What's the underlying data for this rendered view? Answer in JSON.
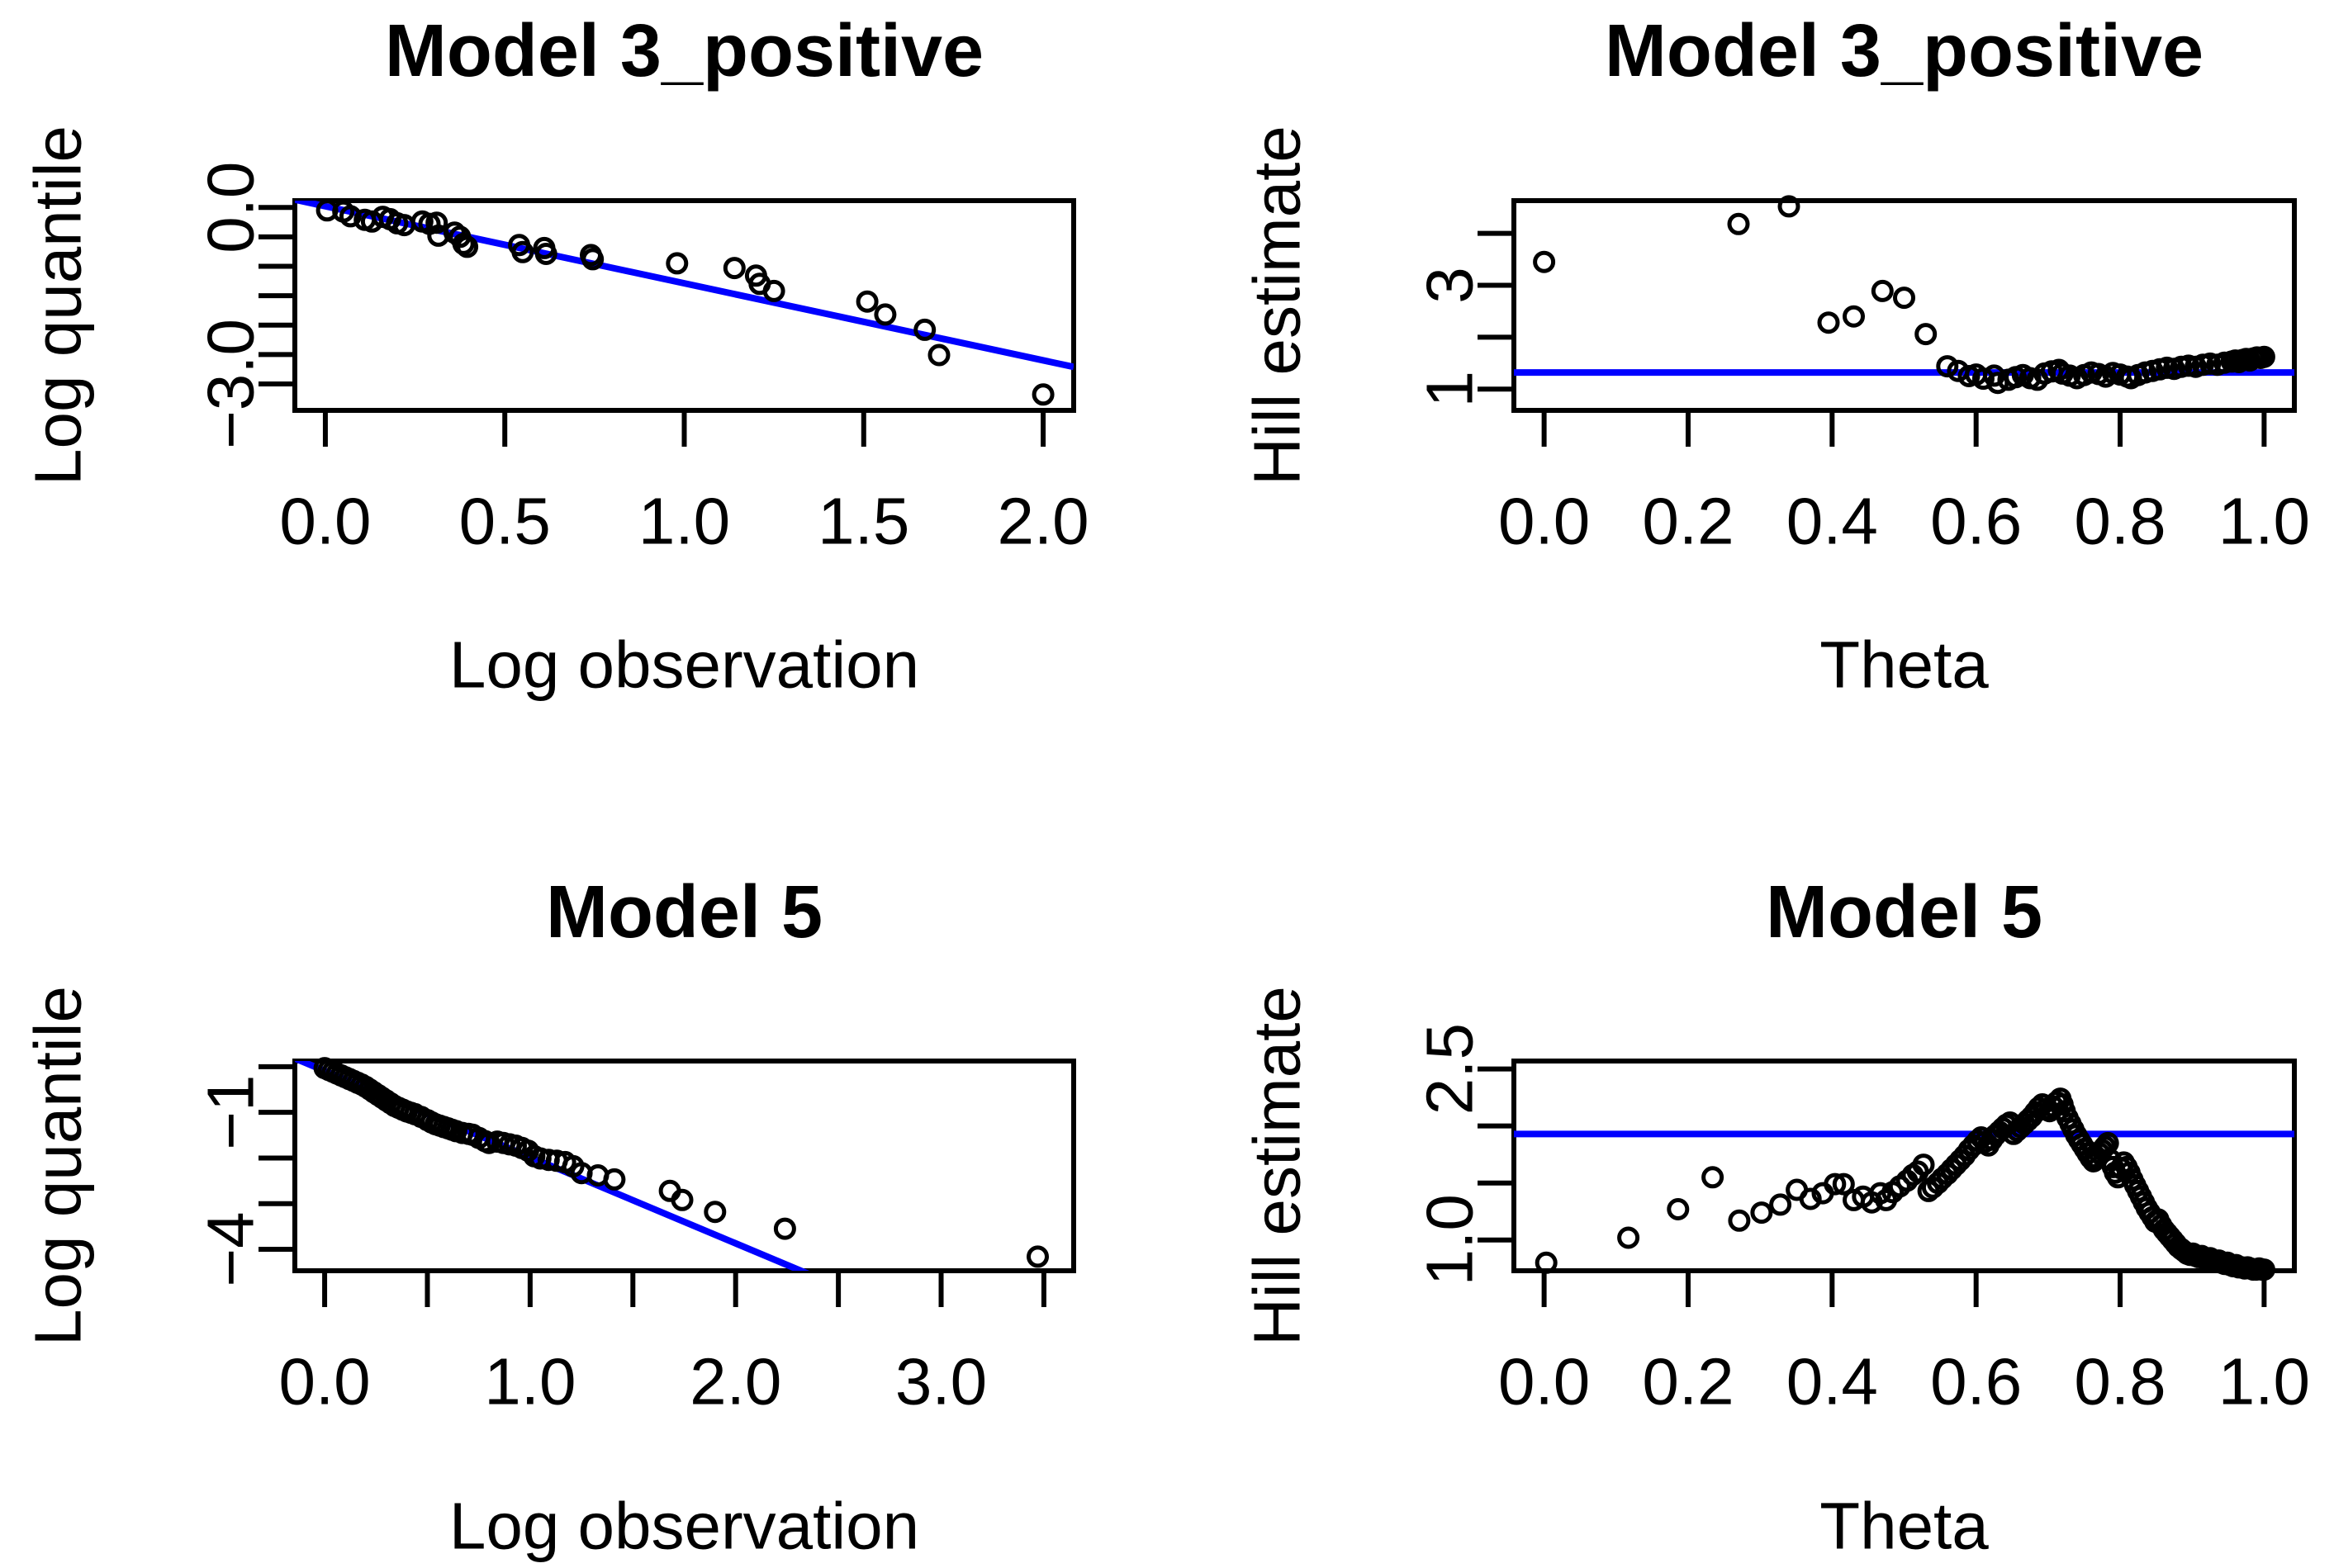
{
  "figure": {
    "background": "#ffffff",
    "foreground": "#000000",
    "accent_blue": "#0000ff",
    "layout_note": "2x2 grid of R base-graphics plots"
  },
  "chart_data": [
    {
      "id": "qq-model3-positive",
      "type": "scatter",
      "title": "Model 3_positive",
      "xlabel": "Log observation",
      "ylabel": "Log quantile",
      "xlim": [
        -0.085,
        2.085
      ],
      "ylim": [
        -3.45,
        0.115
      ],
      "grid": "off",
      "xticks": [
        [
          0,
          "0.0"
        ],
        [
          0.5,
          "0.5"
        ],
        [
          1,
          "1.0"
        ],
        [
          1.5,
          "1.5"
        ],
        [
          2,
          "2.0"
        ]
      ],
      "yticks": [
        [
          0,
          "0.0"
        ],
        [
          -0.5,
          ""
        ],
        [
          -1,
          ""
        ],
        [
          -1.5,
          ""
        ],
        [
          -2,
          ""
        ],
        [
          -2.5,
          ""
        ],
        [
          -3,
          "−3.0"
        ]
      ],
      "refline": {
        "kind": "ab",
        "slope": -1.31,
        "intercept": 0.02
      },
      "points": [
        [
          0.005,
          -0.05
        ],
        [
          0.05,
          -0.07
        ],
        [
          0.07,
          -0.15
        ],
        [
          0.11,
          -0.21
        ],
        [
          0.13,
          -0.24
        ],
        [
          0.16,
          -0.16
        ],
        [
          0.18,
          -0.2
        ],
        [
          0.2,
          -0.27
        ],
        [
          0.22,
          -0.3
        ],
        [
          0.27,
          -0.24
        ],
        [
          0.29,
          -0.28
        ],
        [
          0.31,
          -0.26
        ],
        [
          0.315,
          -0.48
        ],
        [
          0.36,
          -0.43
        ],
        [
          0.375,
          -0.5
        ],
        [
          0.385,
          -0.62
        ],
        [
          0.395,
          -0.67
        ],
        [
          0.54,
          -0.64
        ],
        [
          0.55,
          -0.76
        ],
        [
          0.61,
          -0.69
        ],
        [
          0.615,
          -0.79
        ],
        [
          0.74,
          -0.81
        ],
        [
          0.745,
          -0.88
        ],
        [
          0.98,
          -0.95
        ],
        [
          1.14,
          -1.03
        ],
        [
          1.2,
          -1.16
        ],
        [
          1.21,
          -1.3
        ],
        [
          1.25,
          -1.42
        ],
        [
          1.51,
          -1.6
        ],
        [
          1.56,
          -1.82
        ],
        [
          1.67,
          -2.08
        ],
        [
          1.71,
          -2.51
        ],
        [
          2.0,
          -3.18
        ]
      ]
    },
    {
      "id": "hill-model3-positive",
      "type": "scatter",
      "title": "Model 3_positive",
      "xlabel": "Theta",
      "ylabel": "Hill estimate",
      "xlim": [
        -0.042,
        1.042
      ],
      "ylim": [
        0.59,
        4.63
      ],
      "grid": "off",
      "xticks": [
        [
          0,
          "0.0"
        ],
        [
          0.2,
          "0.2"
        ],
        [
          0.4,
          "0.4"
        ],
        [
          0.6,
          "0.6"
        ],
        [
          0.8,
          "0.8"
        ],
        [
          1,
          "1.0"
        ]
      ],
      "yticks": [
        [
          1,
          "1"
        ],
        [
          2,
          ""
        ],
        [
          3,
          "3"
        ],
        [
          4,
          ""
        ]
      ],
      "refline": {
        "kind": "h",
        "y": 1.32
      },
      "points": [
        [
          0.0,
          3.45
        ],
        [
          0.27,
          4.18
        ],
        [
          0.34,
          4.52
        ],
        [
          0.395,
          2.28
        ],
        [
          0.43,
          2.4
        ],
        [
          0.47,
          2.89
        ],
        [
          0.5,
          2.76
        ],
        [
          0.53,
          2.06
        ],
        [
          0.56,
          1.44
        ],
        [
          0.575,
          1.35
        ],
        [
          0.59,
          1.25
        ],
        [
          0.6,
          1.28
        ],
        [
          0.61,
          1.2
        ],
        [
          0.625,
          1.26
        ],
        [
          0.63,
          1.12
        ],
        [
          0.645,
          1.18
        ],
        [
          0.655,
          1.23
        ],
        [
          0.665,
          1.27
        ],
        [
          0.675,
          1.21
        ],
        [
          0.685,
          1.18
        ],
        [
          0.695,
          1.3
        ],
        [
          0.705,
          1.34
        ],
        [
          0.715,
          1.37
        ],
        [
          0.72,
          1.3
        ],
        [
          0.73,
          1.26
        ],
        [
          0.74,
          1.21
        ],
        [
          0.75,
          1.27
        ],
        [
          0.76,
          1.32
        ],
        [
          0.77,
          1.29
        ],
        [
          0.78,
          1.24
        ],
        [
          0.79,
          1.31
        ],
        [
          0.8,
          1.28
        ],
        [
          0.81,
          1.24
        ],
        [
          0.815,
          1.21
        ],
        [
          0.825,
          1.27
        ],
        [
          0.835,
          1.32
        ],
        [
          0.845,
          1.35
        ],
        [
          0.855,
          1.38
        ],
        [
          0.865,
          1.41
        ],
        [
          0.875,
          1.39
        ],
        [
          0.885,
          1.43
        ],
        [
          0.895,
          1.45
        ],
        [
          0.905,
          1.43
        ],
        [
          0.915,
          1.47
        ],
        [
          0.925,
          1.49
        ],
        [
          0.935,
          1.47
        ],
        [
          0.945,
          1.51
        ],
        [
          0.955,
          1.53
        ],
        [
          0.96,
          1.55
        ],
        [
          0.965,
          1.52
        ],
        [
          0.97,
          1.56
        ],
        [
          0.975,
          1.58
        ],
        [
          0.98,
          1.55
        ],
        [
          0.985,
          1.59
        ],
        [
          0.99,
          1.61
        ],
        [
          0.995,
          1.6
        ],
        [
          1.0,
          1.62
        ]
      ]
    },
    {
      "id": "qq-model5",
      "type": "scatter",
      "title": "Model 5",
      "xlabel": "Log observation",
      "ylabel": "Log quantile",
      "xlim": [
        -0.145,
        3.645
      ],
      "ylim": [
        -4.47,
        0.125
      ],
      "grid": "off",
      "xticks": [
        [
          0,
          "0.0"
        ],
        [
          0.5,
          ""
        ],
        [
          1,
          "1.0"
        ],
        [
          1.5,
          ""
        ],
        [
          2,
          "2.0"
        ],
        [
          2.5,
          ""
        ],
        [
          3,
          "3.0"
        ],
        [
          3.5,
          ""
        ]
      ],
      "yticks": [
        [
          0,
          ""
        ],
        [
          -1,
          "−1"
        ],
        [
          -2,
          ""
        ],
        [
          -3,
          ""
        ],
        [
          -4,
          "−4"
        ]
      ],
      "refline": {
        "kind": "ab",
        "slope": -1.89,
        "intercept": -0.09
      },
      "points": [
        [
          0.0,
          -0.03
        ],
        [
          0.02,
          -0.07
        ],
        [
          0.04,
          -0.11
        ],
        [
          0.06,
          -0.15
        ],
        [
          0.08,
          -0.19
        ],
        [
          0.1,
          -0.23
        ],
        [
          0.12,
          -0.27
        ],
        [
          0.14,
          -0.31
        ],
        [
          0.16,
          -0.35
        ],
        [
          0.18,
          -0.39
        ],
        [
          0.2,
          -0.44
        ],
        [
          0.22,
          -0.5
        ],
        [
          0.24,
          -0.56
        ],
        [
          0.26,
          -0.62
        ],
        [
          0.28,
          -0.68
        ],
        [
          0.3,
          -0.74
        ],
        [
          0.32,
          -0.8
        ],
        [
          0.34,
          -0.86
        ],
        [
          0.36,
          -0.9
        ],
        [
          0.38,
          -0.94
        ],
        [
          0.4,
          -0.98
        ],
        [
          0.42,
          -1.01
        ],
        [
          0.44,
          -1.04
        ],
        [
          0.47,
          -1.1
        ],
        [
          0.5,
          -1.17
        ],
        [
          0.52,
          -1.22
        ],
        [
          0.54,
          -1.26
        ],
        [
          0.56,
          -1.29
        ],
        [
          0.58,
          -1.32
        ],
        [
          0.6,
          -1.35
        ],
        [
          0.62,
          -1.38
        ],
        [
          0.64,
          -1.41
        ],
        [
          0.67,
          -1.45
        ],
        [
          0.7,
          -1.47
        ],
        [
          0.72,
          -1.49
        ],
        [
          0.75,
          -1.56
        ],
        [
          0.78,
          -1.63
        ],
        [
          0.8,
          -1.67
        ],
        [
          0.84,
          -1.64
        ],
        [
          0.87,
          -1.67
        ],
        [
          0.9,
          -1.7
        ],
        [
          0.93,
          -1.73
        ],
        [
          0.96,
          -1.78
        ],
        [
          0.99,
          -1.84
        ],
        [
          1.02,
          -1.96
        ],
        [
          1.05,
          -2.01
        ],
        [
          1.09,
          -2.04
        ],
        [
          1.13,
          -2.06
        ],
        [
          1.17,
          -2.09
        ],
        [
          1.21,
          -2.18
        ],
        [
          1.25,
          -2.33
        ],
        [
          1.33,
          -2.38
        ],
        [
          1.41,
          -2.47
        ],
        [
          1.68,
          -2.72
        ],
        [
          1.74,
          -2.92
        ],
        [
          1.9,
          -3.18
        ],
        [
          2.24,
          -3.55
        ],
        [
          3.47,
          -4.16
        ]
      ]
    },
    {
      "id": "hill-model5",
      "type": "scatter",
      "title": "Model 5",
      "xlabel": "Theta",
      "ylabel": "Hill estimate",
      "xlim": [
        -0.042,
        1.042
      ],
      "ylim": [
        0.73,
        2.57
      ],
      "grid": "off",
      "xticks": [
        [
          0,
          "0.0"
        ],
        [
          0.2,
          "0.2"
        ],
        [
          0.4,
          "0.4"
        ],
        [
          0.6,
          "0.6"
        ],
        [
          0.8,
          "0.8"
        ],
        [
          1,
          "1.0"
        ]
      ],
      "yticks": [
        [
          1,
          "1.0"
        ],
        [
          1.5,
          ""
        ],
        [
          2,
          ""
        ],
        [
          2.5,
          "2.5"
        ]
      ],
      "refline": {
        "kind": "h",
        "y": 1.93
      },
      "points": [
        [
          0.003,
          0.8
        ],
        [
          0.117,
          1.02
        ],
        [
          0.186,
          1.27
        ],
        [
          0.234,
          1.55
        ],
        [
          0.271,
          1.17
        ],
        [
          0.302,
          1.24
        ],
        [
          0.328,
          1.31
        ],
        [
          0.351,
          1.44
        ],
        [
          0.37,
          1.36
        ],
        [
          0.387,
          1.41
        ],
        [
          0.404,
          1.49
        ],
        [
          0.416,
          1.49
        ],
        [
          0.43,
          1.35
        ],
        [
          0.443,
          1.38
        ],
        [
          0.455,
          1.33
        ],
        [
          0.467,
          1.41
        ],
        [
          0.475,
          1.35
        ],
        [
          0.484,
          1.42
        ],
        [
          0.494,
          1.47
        ],
        [
          0.504,
          1.52
        ],
        [
          0.512,
          1.57
        ],
        [
          0.519,
          1.6
        ],
        [
          0.527,
          1.66
        ],
        [
          0.534,
          1.43
        ],
        [
          0.54,
          1.46
        ],
        [
          0.547,
          1.5
        ],
        [
          0.553,
          1.54
        ],
        [
          0.56,
          1.58
        ],
        [
          0.566,
          1.62
        ],
        [
          0.572,
          1.66
        ],
        [
          0.578,
          1.7
        ],
        [
          0.584,
          1.74
        ],
        [
          0.59,
          1.79
        ],
        [
          0.596,
          1.83
        ],
        [
          0.602,
          1.87
        ],
        [
          0.607,
          1.9
        ],
        [
          0.612,
          1.86
        ],
        [
          0.617,
          1.83
        ],
        [
          0.622,
          1.88
        ],
        [
          0.627,
          1.92
        ],
        [
          0.632,
          1.95
        ],
        [
          0.637,
          1.98
        ],
        [
          0.642,
          2.01
        ],
        [
          0.647,
          2.03
        ],
        [
          0.652,
          1.93
        ],
        [
          0.657,
          1.96
        ],
        [
          0.662,
          1.99
        ],
        [
          0.667,
          2.02
        ],
        [
          0.672,
          2.05
        ],
        [
          0.677,
          2.08
        ],
        [
          0.682,
          2.12
        ],
        [
          0.687,
          2.16
        ],
        [
          0.692,
          2.19
        ],
        [
          0.697,
          2.15
        ],
        [
          0.702,
          2.13
        ],
        [
          0.707,
          2.17
        ],
        [
          0.712,
          2.21
        ],
        [
          0.717,
          2.24
        ],
        [
          0.72,
          2.19
        ],
        [
          0.723,
          2.13
        ],
        [
          0.727,
          2.07
        ],
        [
          0.731,
          2.02
        ],
        [
          0.735,
          1.97
        ],
        [
          0.739,
          1.92
        ],
        [
          0.743,
          1.88
        ],
        [
          0.747,
          1.84
        ],
        [
          0.751,
          1.8
        ],
        [
          0.755,
          1.76
        ],
        [
          0.759,
          1.72
        ],
        [
          0.763,
          1.69
        ],
        [
          0.767,
          1.72
        ],
        [
          0.771,
          1.76
        ],
        [
          0.775,
          1.79
        ],
        [
          0.779,
          1.82
        ],
        [
          0.783,
          1.85
        ],
        [
          0.787,
          1.7
        ],
        [
          0.79,
          1.64
        ],
        [
          0.793,
          1.59
        ],
        [
          0.797,
          1.55
        ],
        [
          0.801,
          1.63
        ],
        [
          0.805,
          1.68
        ],
        [
          0.809,
          1.64
        ],
        [
          0.813,
          1.59
        ],
        [
          0.817,
          1.53
        ],
        [
          0.821,
          1.48
        ],
        [
          0.825,
          1.43
        ],
        [
          0.829,
          1.38
        ],
        [
          0.833,
          1.33
        ],
        [
          0.837,
          1.28
        ],
        [
          0.841,
          1.24
        ],
        [
          0.845,
          1.2
        ],
        [
          0.849,
          1.16
        ],
        [
          0.853,
          1.18
        ],
        [
          0.857,
          1.13
        ],
        [
          0.861,
          1.09
        ],
        [
          0.865,
          1.06
        ],
        [
          0.869,
          1.03
        ],
        [
          0.873,
          1.0
        ],
        [
          0.877,
          0.97
        ],
        [
          0.881,
          0.94
        ],
        [
          0.885,
          0.92
        ],
        [
          0.889,
          0.9
        ],
        [
          0.893,
          0.88
        ],
        [
          0.897,
          0.87
        ],
        [
          0.901,
          0.88
        ],
        [
          0.905,
          0.86
        ],
        [
          0.909,
          0.85
        ],
        [
          0.913,
          0.86
        ],
        [
          0.917,
          0.84
        ],
        [
          0.921,
          0.83
        ],
        [
          0.925,
          0.84
        ],
        [
          0.929,
          0.82
        ],
        [
          0.933,
          0.81
        ],
        [
          0.937,
          0.82
        ],
        [
          0.941,
          0.8
        ],
        [
          0.945,
          0.79
        ],
        [
          0.949,
          0.8
        ],
        [
          0.953,
          0.78
        ],
        [
          0.957,
          0.77
        ],
        [
          0.961,
          0.78
        ],
        [
          0.965,
          0.76
        ],
        [
          0.969,
          0.76
        ],
        [
          0.973,
          0.75
        ],
        [
          0.977,
          0.76
        ],
        [
          0.981,
          0.75
        ],
        [
          0.985,
          0.74
        ],
        [
          0.989,
          0.74
        ],
        [
          0.993,
          0.75
        ],
        [
          0.997,
          0.74
        ],
        [
          1.0,
          0.74
        ]
      ]
    }
  ]
}
